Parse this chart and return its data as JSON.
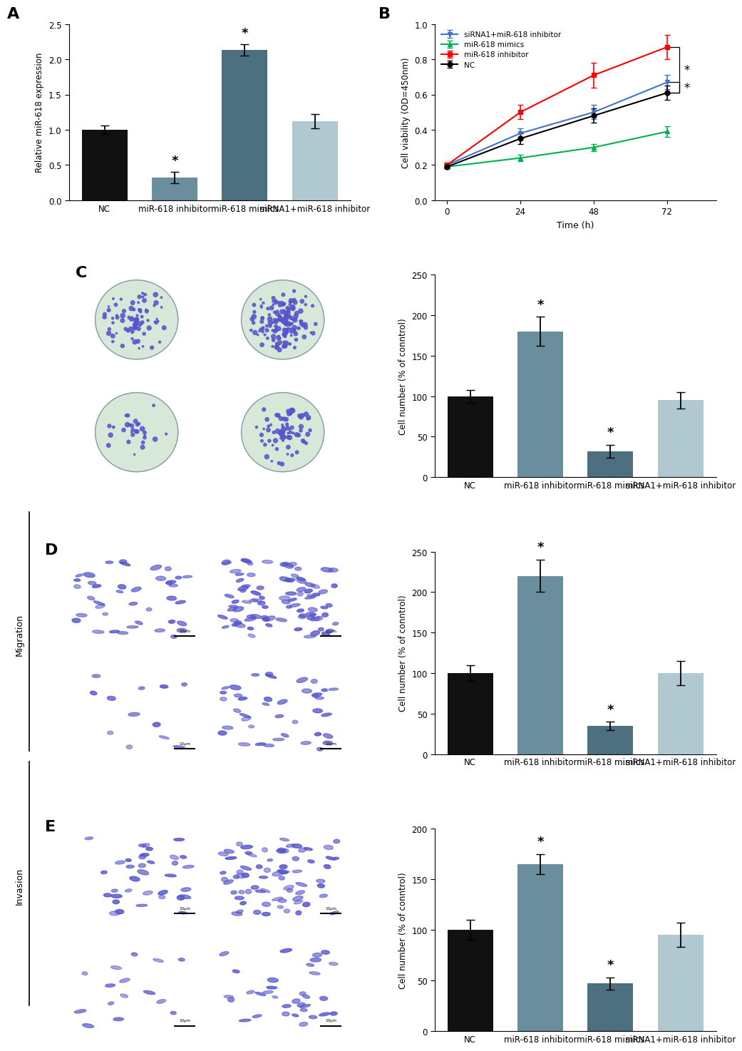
{
  "panel_A": {
    "categories": [
      "NC",
      "miR-618 inhibitor",
      "miR-618 mimics",
      "siRNA1+miR-618 inhibitor"
    ],
    "values": [
      1.0,
      0.32,
      2.13,
      1.12
    ],
    "errors": [
      0.06,
      0.08,
      0.08,
      0.1
    ],
    "colors": [
      "#111111",
      "#6B8E9F",
      "#4D7080",
      "#B0C8D0"
    ],
    "ylabel": "Relative miR-618 expression",
    "ylim": [
      0,
      2.5
    ],
    "yticks": [
      0.0,
      0.5,
      1.0,
      1.5,
      2.0,
      2.5
    ],
    "panel_label": "A"
  },
  "panel_B": {
    "time": [
      0,
      24,
      48,
      72
    ],
    "series": {
      "siRNA1+miR-618 inhibitor": {
        "values": [
          0.2,
          0.38,
          0.5,
          0.67
        ],
        "errors": [
          0.01,
          0.03,
          0.04,
          0.04
        ],
        "color": "#4472C4",
        "marker": "v",
        "linestyle": "-"
      },
      "miR-618 mimics": {
        "values": [
          0.19,
          0.24,
          0.3,
          0.39
        ],
        "errors": [
          0.01,
          0.02,
          0.02,
          0.03
        ],
        "color": "#00B050",
        "marker": "^",
        "linestyle": "-"
      },
      "miR-618 inhibitor": {
        "values": [
          0.2,
          0.5,
          0.71,
          0.87
        ],
        "errors": [
          0.01,
          0.04,
          0.07,
          0.07
        ],
        "color": "#FF0000",
        "marker": "s",
        "linestyle": "-"
      },
      "NC": {
        "values": [
          0.19,
          0.35,
          0.48,
          0.61
        ],
        "errors": [
          0.01,
          0.03,
          0.04,
          0.04
        ],
        "color": "#000000",
        "marker": "o",
        "linestyle": "-"
      }
    },
    "xlabel": "Time (h)",
    "ylabel": "Cell viability (OD=450nm)",
    "ylim": [
      0.0,
      1.0
    ],
    "yticks": [
      0.0,
      0.2,
      0.4,
      0.6,
      0.8,
      1.0
    ],
    "xticks": [
      0,
      24,
      48,
      72
    ],
    "panel_label": "B",
    "legend_order": [
      "siRNA1+miR-618 inhibitor",
      "miR-618 mimics",
      "miR-618 inhibitor",
      "NC"
    ]
  },
  "panel_C_bar": {
    "categories": [
      "NC",
      "miR-618 inhibitor",
      "miR-618 mimics",
      "siRNA1+miR-618 inhibitor"
    ],
    "values": [
      100,
      180,
      32,
      95
    ],
    "errors": [
      8,
      18,
      8,
      10
    ],
    "colors": [
      "#111111",
      "#6B8E9F",
      "#4D7080",
      "#B0C8D0"
    ],
    "ylabel": "Cell number (% of conntrol)",
    "ylim": [
      0,
      250
    ],
    "yticks": [
      0,
      50,
      100,
      150,
      200,
      250
    ],
    "panel_label": "C"
  },
  "panel_D_bar": {
    "categories": [
      "NC",
      "miR-618 inhibitor",
      "miR-618 mimics",
      "siRNA1+miR-618 inhibitor"
    ],
    "values": [
      100,
      220,
      35,
      100
    ],
    "errors": [
      10,
      20,
      5,
      15
    ],
    "colors": [
      "#111111",
      "#6B8E9F",
      "#4D7080",
      "#B0C8D0"
    ],
    "ylabel": "Cell number (% of conntrol)",
    "ylim": [
      0,
      250
    ],
    "yticks": [
      0,
      50,
      100,
      150,
      200,
      250
    ],
    "panel_label": "D"
  },
  "panel_E_bar": {
    "categories": [
      "NC",
      "miR-618 inhibitor",
      "miR-618 mimics",
      "siRNA1+miR-618 inhibitor"
    ],
    "values": [
      100,
      165,
      47,
      95
    ],
    "errors": [
      10,
      10,
      6,
      12
    ],
    "colors": [
      "#111111",
      "#6B8E9F",
      "#4D7080",
      "#B0C8D0"
    ],
    "ylabel": "Cell number (% of conntrol)",
    "ylim": [
      0,
      200
    ],
    "yticks": [
      0,
      50,
      100,
      150,
      200
    ],
    "panel_label": "E"
  },
  "background_color": "#FFFFFF",
  "colony_bg": "#D8E8D8",
  "transwell_bg": "#D8E8E0",
  "cell_color": "#5555CC"
}
